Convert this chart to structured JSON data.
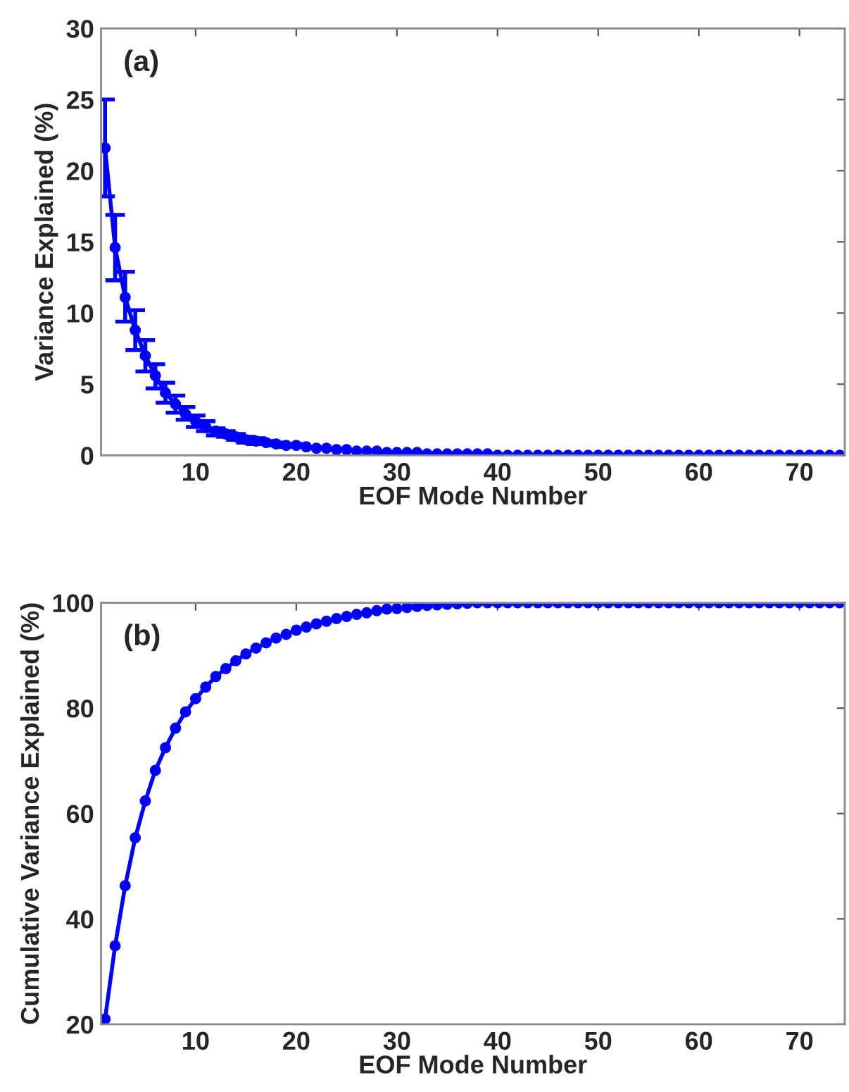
{
  "chart_data": [
    {
      "type": "line",
      "xlabel": "EOF Mode Number",
      "ylabel": "Variance Explained (%)",
      "annotations": [
        "(a)"
      ],
      "x": [
        1,
        2,
        3,
        4,
        5,
        6,
        7,
        8,
        9,
        10,
        11,
        12,
        13,
        14,
        15,
        16,
        17,
        18,
        19,
        20,
        21,
        22,
        23,
        24,
        25,
        26,
        27,
        28,
        29,
        30,
        31,
        32,
        33,
        34,
        35,
        36,
        37,
        38,
        39,
        40,
        41,
        42,
        43,
        44,
        45,
        46,
        47,
        48,
        49,
        50,
        51,
        52,
        53,
        54,
        55,
        56,
        57,
        58,
        59,
        60,
        61,
        62,
        63,
        64,
        65,
        66,
        67,
        68,
        69,
        70,
        71,
        72,
        73,
        74
      ],
      "series": [
        {
          "color": "#0000ff",
          "values": [
            21.6,
            14.6,
            11.1,
            8.8,
            7.0,
            5.6,
            4.4,
            3.6,
            2.9,
            2.4,
            2.0,
            1.7,
            1.5,
            1.3,
            1.1,
            1.0,
            0.9,
            0.8,
            0.7,
            0.7,
            0.6,
            0.5,
            0.5,
            0.4,
            0.4,
            0.3,
            0.3,
            0.3,
            0.2,
            0.2,
            0.2,
            0.2,
            0.1,
            0.1,
            0.1,
            0.1,
            0.1,
            0.1,
            0.1,
            0.0,
            0.0,
            0.0,
            0.0,
            0.0,
            0.0,
            0.0,
            0.0,
            0.0,
            0.0,
            0.0,
            0.0,
            0.0,
            0.0,
            0.0,
            0.0,
            0.0,
            0.0,
            0.0,
            0.0,
            0.0,
            0.0,
            0.0,
            0.0,
            0.0,
            0.0,
            0.0,
            0.0,
            0.0,
            0.0,
            0.0,
            0.0,
            0.0,
            0.0,
            0.0
          ],
          "errors": [
            [
              18.2,
              25.0
            ],
            [
              12.3,
              16.9
            ],
            [
              9.4,
              12.9
            ],
            [
              7.4,
              10.2
            ],
            [
              5.9,
              8.1
            ],
            [
              4.7,
              6.4
            ],
            [
              3.7,
              5.1
            ],
            [
              3.0,
              4.2
            ],
            [
              2.5,
              3.4
            ],
            [
              2.0,
              2.8
            ],
            [
              1.7,
              2.4
            ],
            [
              1.4,
              1.9
            ],
            0.2,
            0.2,
            0.2,
            0.2,
            0.1,
            0.1,
            0.1,
            0.1,
            null,
            null,
            null,
            null,
            null,
            null,
            null,
            null,
            null,
            null,
            null,
            null,
            null,
            null,
            null,
            null,
            null,
            null,
            null,
            null,
            null,
            null,
            null,
            null,
            null,
            null,
            null,
            null,
            null,
            null,
            null,
            null,
            null,
            null,
            null,
            null,
            null,
            null,
            null,
            null,
            null,
            null,
            null,
            null,
            null,
            null,
            null,
            null,
            null,
            null,
            null,
            null,
            null,
            null
          ]
        }
      ],
      "xlim": [
        0.6,
        74.5
      ],
      "xticks": [
        10,
        20,
        30,
        40,
        50,
        60,
        70
      ],
      "ylim": [
        0,
        30
      ],
      "yticks": [
        0,
        5,
        10,
        15,
        20,
        25,
        30
      ],
      "marker": "circle",
      "line_style": "solid",
      "grid": false,
      "legend": false
    },
    {
      "type": "line",
      "xlabel": "EOF Mode Number",
      "ylabel": "Cumulative Variance Explained (%)",
      "annotations": [
        "(b)"
      ],
      "x": [
        1,
        2,
        3,
        4,
        5,
        6,
        7,
        8,
        9,
        10,
        11,
        12,
        13,
        14,
        15,
        16,
        17,
        18,
        19,
        20,
        21,
        22,
        23,
        24,
        25,
        26,
        27,
        28,
        29,
        30,
        31,
        32,
        33,
        34,
        35,
        36,
        37,
        38,
        39,
        40,
        41,
        42,
        43,
        44,
        45,
        46,
        47,
        48,
        49,
        50,
        51,
        52,
        53,
        54,
        55,
        56,
        57,
        58,
        59,
        60,
        61,
        62,
        63,
        64,
        65,
        66,
        67,
        68,
        69,
        70,
        71,
        72,
        73,
        74
      ],
      "series": [
        {
          "color": "#0000ff",
          "values": [
            21,
            34.9,
            46.3,
            55.4,
            62.4,
            68.2,
            72.5,
            76.2,
            79.3,
            81.8,
            84.0,
            86.0,
            87.5,
            89.0,
            90.3,
            91.4,
            92.4,
            93.3,
            94.0,
            94.8,
            95.4,
            96.0,
            96.5,
            97.0,
            97.4,
            97.8,
            98.1,
            98.5,
            98.8,
            98.9,
            99.1,
            99.3,
            99.5,
            99.6,
            99.7,
            99.8,
            99.9,
            100,
            100,
            100,
            100,
            100,
            100,
            100,
            100,
            100,
            100,
            100,
            100,
            100,
            100,
            100,
            100,
            100,
            100,
            100,
            100,
            100,
            100,
            100,
            100,
            100,
            100,
            100,
            100,
            100,
            100,
            100,
            100,
            100,
            100,
            100,
            100,
            100
          ]
        }
      ],
      "xlim": [
        0.6,
        74.5
      ],
      "xticks": [
        10,
        20,
        30,
        40,
        50,
        60,
        70
      ],
      "ylim": [
        20,
        100
      ],
      "yticks": [
        20,
        40,
        60,
        80,
        100
      ],
      "marker": "circle",
      "line_style": "solid",
      "grid": false,
      "legend": false
    }
  ]
}
